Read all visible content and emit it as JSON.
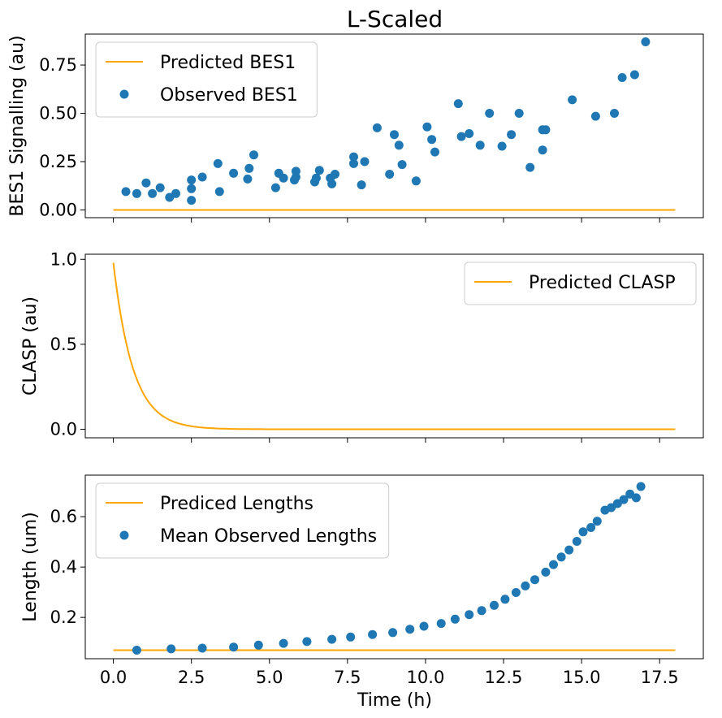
{
  "figure": {
    "title": "L-Scaled",
    "xlabel": "Time (h)",
    "colors": {
      "line": "#FFA500",
      "scatter": "#1F77B4"
    }
  },
  "chart_data": [
    {
      "type": "scatter",
      "ylabel": "BES1 Signalling (au)",
      "xlim": [
        -0.9,
        18.9
      ],
      "ylim": [
        -0.04,
        0.91
      ],
      "yticks": [
        "0.00",
        "0.25",
        "0.50",
        "0.75"
      ],
      "ytick_values": [
        0,
        0.25,
        0.5,
        0.75
      ],
      "legend": {
        "placement": "top-left",
        "entries": [
          "Predicted BES1",
          "Observed BES1"
        ]
      },
      "series": [
        {
          "name": "Predicted BES1",
          "kind": "line",
          "x": [
            0,
            18
          ],
          "y": [
            0,
            0
          ]
        },
        {
          "name": "Observed BES1",
          "kind": "scatter",
          "x": [
            0.4,
            0.75,
            1.05,
            1.25,
            1.5,
            1.8,
            2.0,
            2.5,
            2.5,
            2.5,
            2.85,
            3.35,
            3.4,
            3.85,
            4.3,
            4.35,
            4.5,
            5.2,
            5.3,
            5.45,
            5.8,
            5.85,
            5.85,
            6.45,
            6.5,
            6.6,
            6.95,
            7.0,
            7.1,
            7.7,
            7.7,
            7.95,
            8.05,
            8.45,
            8.85,
            9.0,
            9.15,
            9.25,
            9.7,
            10.05,
            10.2,
            10.3,
            11.05,
            11.15,
            11.4,
            11.75,
            12.05,
            12.45,
            12.75,
            13.0,
            13.35,
            13.75,
            13.75,
            13.85,
            14.7,
            15.45,
            16.05,
            16.3,
            16.7,
            17.05
          ],
          "y": [
            0.095,
            0.085,
            0.14,
            0.085,
            0.115,
            0.065,
            0.085,
            0.05,
            0.11,
            0.155,
            0.17,
            0.24,
            0.095,
            0.19,
            0.16,
            0.215,
            0.285,
            0.115,
            0.19,
            0.165,
            0.155,
            0.2,
            0.17,
            0.145,
            0.165,
            0.205,
            0.165,
            0.135,
            0.185,
            0.275,
            0.24,
            0.13,
            0.25,
            0.425,
            0.185,
            0.39,
            0.335,
            0.235,
            0.15,
            0.43,
            0.365,
            0.3,
            0.55,
            0.38,
            0.395,
            0.335,
            0.5,
            0.33,
            0.39,
            0.5,
            0.22,
            0.415,
            0.31,
            0.415,
            0.57,
            0.485,
            0.5,
            0.685,
            0.7,
            0.87
          ]
        }
      ]
    },
    {
      "type": "line",
      "ylabel": "CLASP (au)",
      "xlim": [
        -0.9,
        18.9
      ],
      "ylim": [
        -0.05,
        1.03
      ],
      "yticks": [
        "0.0",
        "0.5",
        "1.0"
      ],
      "ytick_values": [
        0,
        0.5,
        1.0
      ],
      "legend": {
        "placement": "top-right",
        "entries": [
          "Predicted CLASP"
        ]
      },
      "series": [
        {
          "name": "Predicted CLASP",
          "kind": "curve",
          "formula": "exp(-1.6*t)",
          "y0": 0.98,
          "decay_rate": 1.6,
          "x_range": [
            0,
            18
          ]
        }
      ]
    },
    {
      "type": "scatter",
      "ylabel": "Length (um)",
      "xlim": [
        -0.9,
        18.9
      ],
      "ylim": [
        0.036,
        0.765
      ],
      "yticks": [
        "0.2",
        "0.4",
        "0.6"
      ],
      "ytick_values": [
        0.2,
        0.4,
        0.6
      ],
      "xticks": [
        "0.0",
        "2.5",
        "5.0",
        "7.5",
        "10.0",
        "12.5",
        "15.0",
        "17.5"
      ],
      "xtick_values": [
        0,
        2.5,
        5,
        7.5,
        10,
        12.5,
        15,
        17.5
      ],
      "legend": {
        "placement": "top-left",
        "entries": [
          "Prediced Lengths",
          "Mean Observed Lengths"
        ]
      },
      "series": [
        {
          "name": "Prediced Lengths",
          "kind": "line",
          "x": [
            0,
            18
          ],
          "y": [
            0.07,
            0.07
          ]
        },
        {
          "name": "Mean Observed Lengths",
          "kind": "scatter",
          "x": [
            0.75,
            1.85,
            2.85,
            3.85,
            4.65,
            5.45,
            6.2,
            7.0,
            7.6,
            8.3,
            8.95,
            9.5,
            9.95,
            10.5,
            10.95,
            11.4,
            11.8,
            12.2,
            12.55,
            12.9,
            13.2,
            13.5,
            13.85,
            14.1,
            14.35,
            14.6,
            14.85,
            15.05,
            15.3,
            15.5,
            15.75,
            15.95,
            16.15,
            16.35,
            16.55,
            16.75,
            16.9
          ],
          "y": [
            0.07,
            0.075,
            0.078,
            0.082,
            0.09,
            0.097,
            0.104,
            0.113,
            0.122,
            0.132,
            0.14,
            0.153,
            0.165,
            0.176,
            0.193,
            0.211,
            0.227,
            0.248,
            0.272,
            0.299,
            0.325,
            0.35,
            0.38,
            0.41,
            0.44,
            0.468,
            0.502,
            0.54,
            0.557,
            0.582,
            0.626,
            0.636,
            0.652,
            0.668,
            0.69,
            0.675,
            0.72
          ]
        }
      ]
    }
  ]
}
